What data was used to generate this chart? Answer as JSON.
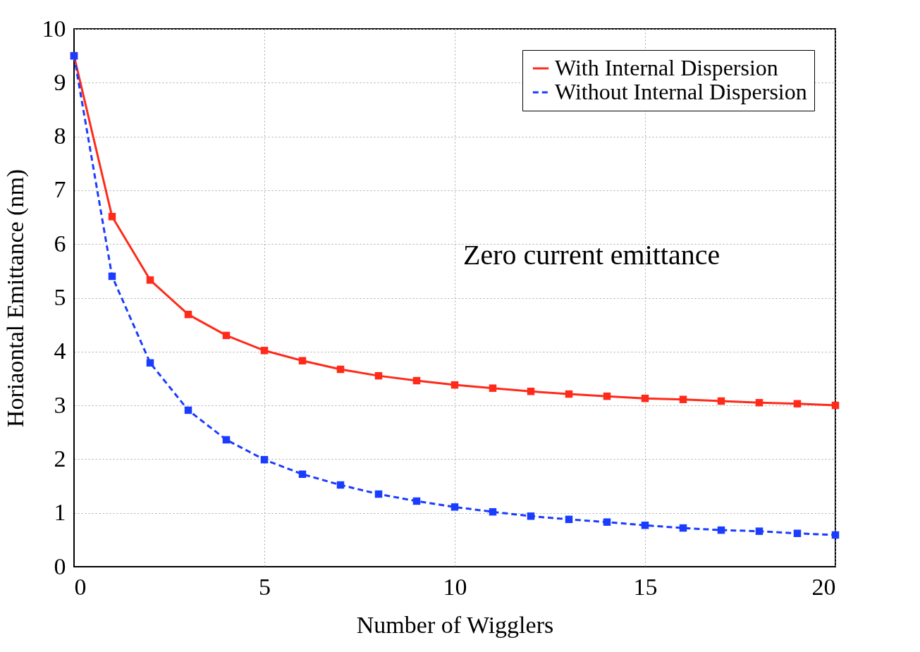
{
  "chart_data": {
    "type": "line",
    "xlabel": "Number of Wigglers",
    "ylabel": "Horiaontal Emittance (nm)",
    "x": [
      0,
      1,
      2,
      3,
      4,
      5,
      6,
      7,
      8,
      9,
      10,
      11,
      12,
      13,
      14,
      15,
      16,
      17,
      18,
      19,
      20
    ],
    "series": [
      {
        "name": "With Internal Dispersion",
        "color": "#ff2a1a",
        "line_style": "solid",
        "values": [
          9.5,
          6.51,
          5.33,
          4.69,
          4.3,
          4.02,
          3.83,
          3.67,
          3.55,
          3.46,
          3.38,
          3.32,
          3.26,
          3.21,
          3.17,
          3.13,
          3.11,
          3.08,
          3.05,
          3.03,
          3.0
        ]
      },
      {
        "name": "Without Internal Dispersion",
        "color": "#1a3cff",
        "line_style": "dashed",
        "values": [
          9.5,
          5.4,
          3.79,
          2.91,
          2.36,
          1.99,
          1.72,
          1.52,
          1.35,
          1.22,
          1.11,
          1.02,
          0.94,
          0.88,
          0.83,
          0.77,
          0.72,
          0.68,
          0.66,
          0.62,
          0.59
        ]
      }
    ],
    "xlim": [
      0,
      20
    ],
    "xticks": [
      0,
      5,
      10,
      15,
      20
    ],
    "ylim": [
      0,
      10
    ],
    "yticks": [
      0,
      1,
      2,
      3,
      4,
      5,
      6,
      7,
      8,
      9,
      10
    ],
    "grid": true,
    "legend": "top right",
    "marker": "square",
    "annotations": [
      "Zero current emittance"
    ]
  }
}
